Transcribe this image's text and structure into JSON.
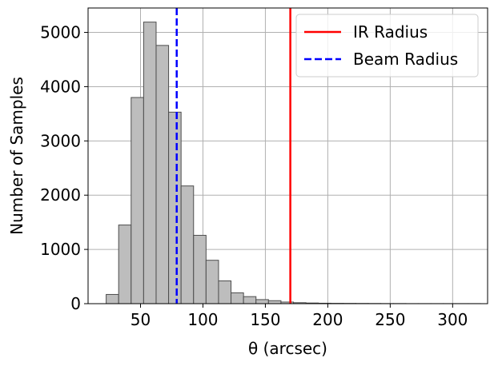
{
  "chart_data": {
    "type": "bar",
    "subtype": "histogram",
    "xlabel": "θ (arcsec)",
    "ylabel": "Number of Samples",
    "xlim": [
      8,
      328
    ],
    "ylim": [
      0,
      5450
    ],
    "xticks": [
      50,
      100,
      150,
      200,
      250,
      300
    ],
    "yticks": [
      0,
      1000,
      2000,
      3000,
      4000,
      5000
    ],
    "grid": true,
    "bar_color": "#bdbdbd",
    "bar_edge_color": "#4d4d4d",
    "bin_edges": [
      22.5,
      32.5,
      42.5,
      52.5,
      62.5,
      72.5,
      82.5,
      92.5,
      102.5,
      112.5,
      122.5,
      132.5,
      142.5,
      152.5,
      162.5,
      172.5,
      182.5,
      192.5,
      202.5,
      212.5,
      222.5,
      232.5,
      242.5,
      252.5,
      262.5,
      272.5,
      282.5,
      292.5,
      302.5,
      312.5,
      322.5
    ],
    "counts": [
      170,
      1450,
      3800,
      5190,
      4760,
      3530,
      2170,
      1260,
      800,
      420,
      200,
      130,
      75,
      55,
      30,
      18,
      12,
      8,
      6,
      5,
      4,
      3,
      2,
      2,
      1,
      1,
      1,
      1,
      1,
      1
    ],
    "lines": [
      {
        "name": "IR Radius",
        "x": 170,
        "color": "#ff0000",
        "style": "solid"
      },
      {
        "name": "Beam Radius",
        "x": 79,
        "color": "#0000ff",
        "style": "dashed"
      }
    ],
    "legend": {
      "position": "top-right",
      "entries": [
        {
          "label": "IR Radius",
          "color": "#ff0000",
          "style": "solid"
        },
        {
          "label": "Beam Radius",
          "color": "#0000ff",
          "style": "dashed"
        }
      ]
    }
  }
}
